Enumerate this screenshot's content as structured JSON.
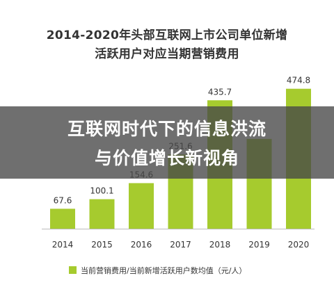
{
  "title": {
    "line1": "2014-2020年头部互联网上市公司单位新增",
    "line2": "活跃用户对应当期营销费用"
  },
  "overlay": {
    "line1": "互联网时代下的信息洪流",
    "line2": "与价值增长新视角"
  },
  "colors": {
    "bar": "#a6cb2e",
    "axis": "#bbbbbb",
    "text": "#333333"
  },
  "chart_data": {
    "type": "bar",
    "title": "2014-2020年头部互联网上市公司单位新增活跃用户对应当期营销费用",
    "categories": [
      "2014",
      "2015",
      "2016",
      "2017",
      "2018",
      "2019",
      "2020"
    ],
    "series": [
      {
        "name": "当前营销费用/当前新增活跃用户数均值（元/人）",
        "values": [
          67.6,
          100.1,
          154.6,
          251.6,
          435.7,
          304.5,
          474.8
        ]
      }
    ],
    "value_labels": [
      "67.6",
      "100.1",
      "154.6",
      "251.6",
      "435.7",
      "",
      "474.8"
    ],
    "ylim": [
      0,
      500
    ],
    "grid": false,
    "legend": "bottom-left"
  }
}
